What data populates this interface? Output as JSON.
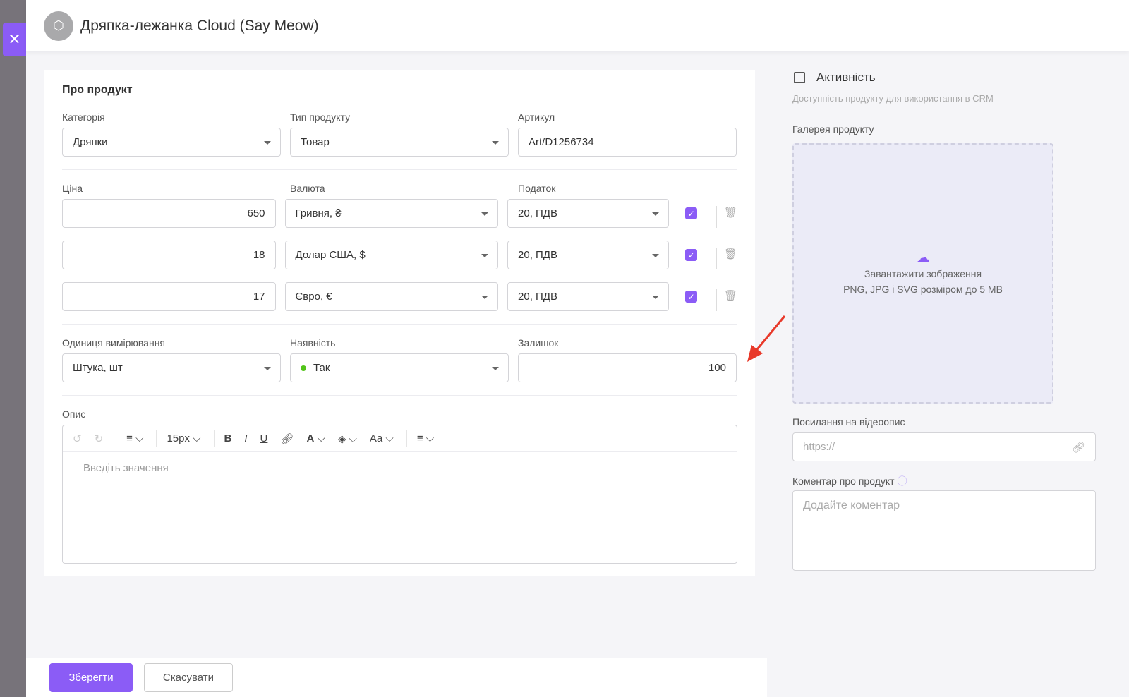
{
  "header": {
    "title": "Дряпка-лежанка Cloud (Say Meow)"
  },
  "section": "Про продукт",
  "labels": {
    "category": "Категорія",
    "type": "Тип продукту",
    "sku": "Артикул",
    "price": "Ціна",
    "currency": "Валюта",
    "tax": "Податок",
    "unit": "Одиниця вимірювання",
    "availability": "Наявність",
    "stock": "Залишок",
    "description": "Опис"
  },
  "values": {
    "category": "Дряпки",
    "type": "Товар",
    "sku": "Art/D1256734",
    "unit": "Штука, шт",
    "availability": "Так",
    "stock": "100"
  },
  "prices": [
    {
      "amount": "650",
      "currency": "Гривня, ₴",
      "tax": "20, ПДВ",
      "checked": true
    },
    {
      "amount": "18",
      "currency": "Долар США, $",
      "tax": "20, ПДВ",
      "checked": true
    },
    {
      "amount": "17",
      "currency": "Євро, €",
      "tax": "20, ПДВ",
      "checked": true
    }
  ],
  "editor": {
    "font_size": "15px",
    "placeholder": "Введіть значення",
    "aa": "Aa"
  },
  "right": {
    "active_label": "Активність",
    "active_hint": "Доступність продукту для використання в CRM",
    "gallery": "Галерея продукту",
    "upload": "Завантажити зображення",
    "upload_hint": "PNG, JPG і SVG розміром до 5 MB",
    "video_label": "Посилання на відеоопис",
    "video_placeholder": "https://",
    "comment_label": "Коментар про продукт",
    "comment_placeholder": "Додайте коментар"
  },
  "footer": {
    "save": "Зберегти",
    "cancel": "Скасувати"
  },
  "colors": {
    "accent": "#8b5cf6",
    "available": "#52c41a",
    "annotation_arrow": "#e8392a"
  }
}
